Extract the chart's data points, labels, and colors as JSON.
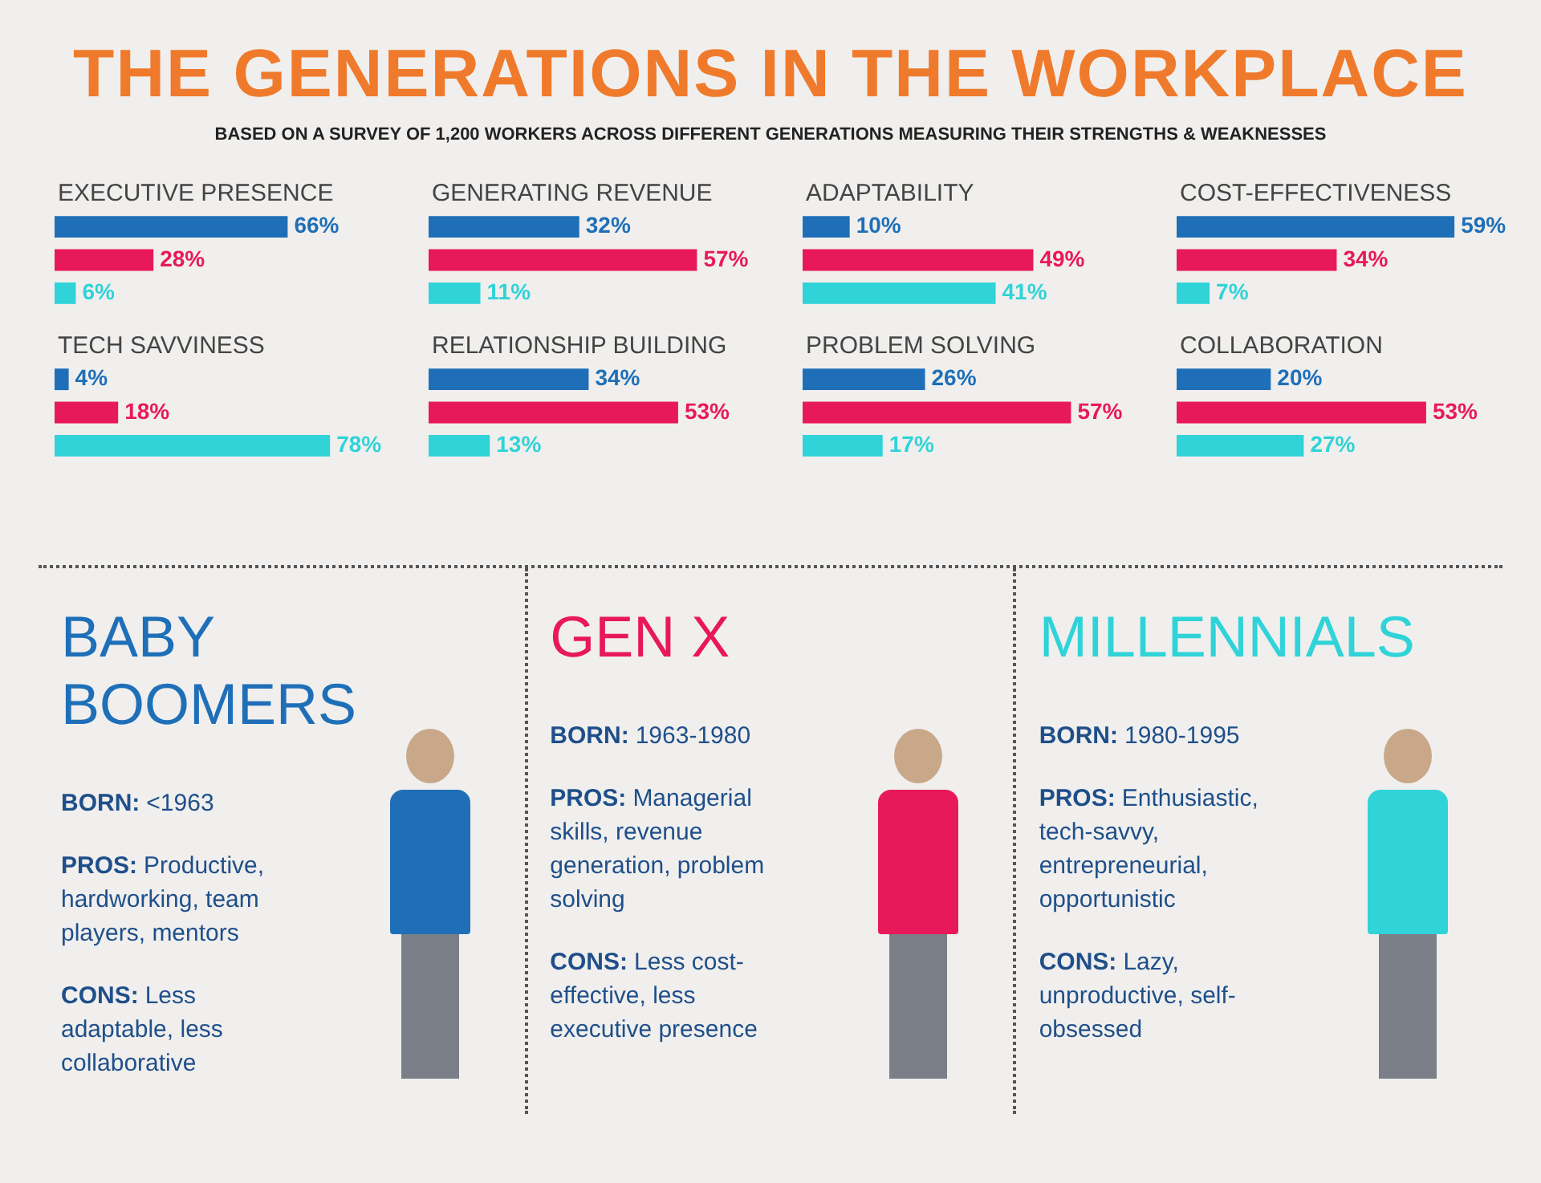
{
  "chart_data": [
    {
      "type": "other",
      "title": "THE GENERATIONS IN THE WORKPLACE",
      "subtitle": "BASED ON A SURVEY OF 1,200 WORKERS ACROSS DIFFERENT GENERATIONS MEASURING THEIR STRENGTHS & WEAKNESSES",
      "color": "#f07a2c"
    },
    {
      "type": "bar",
      "orientation": "horizontal",
      "title": "EXECUTIVE PRESENCE",
      "categories": [
        null,
        null,
        null
      ],
      "values": [
        66,
        28,
        6
      ],
      "colors": [
        "#1f6fb8",
        "#e8195a",
        "#2fd3d8"
      ],
      "value_labels": [
        "66%",
        "28%",
        "6%"
      ]
    },
    {
      "type": "bar",
      "orientation": "horizontal",
      "title": "GENERATING REVENUE",
      "categories": [
        null,
        null,
        null
      ],
      "values": [
        32,
        57,
        11
      ],
      "colors": [
        "#1f6fb8",
        "#e8195a",
        "#2fd3d8"
      ],
      "value_labels": [
        "32%",
        "57%",
        "11%"
      ]
    },
    {
      "type": "bar",
      "orientation": "horizontal",
      "title": "ADAPTABILITY",
      "categories": [
        null,
        null,
        null
      ],
      "values": [
        10,
        49,
        41
      ],
      "colors": [
        "#1f6fb8",
        "#e8195a",
        "#2fd3d8"
      ],
      "value_labels": [
        "10%",
        "49%",
        "41%"
      ]
    },
    {
      "type": "bar",
      "orientation": "horizontal",
      "title": "COST-EFFECTIVENESS",
      "categories": [
        null,
        null,
        null
      ],
      "values": [
        59,
        34,
        7
      ],
      "colors": [
        "#1f6fb8",
        "#e8195a",
        "#2fd3d8"
      ],
      "value_labels": [
        "59%",
        "34%",
        "7%"
      ]
    },
    {
      "type": "bar",
      "orientation": "horizontal",
      "title": "TECH SAVVINESS",
      "categories": [
        null,
        null,
        null
      ],
      "values": [
        4,
        18,
        78
      ],
      "colors": [
        "#1f6fb8",
        "#e8195a",
        "#2fd3d8"
      ],
      "value_labels": [
        "4%",
        "18%",
        "78%"
      ]
    },
    {
      "type": "bar",
      "orientation": "horizontal",
      "title": "RELATIONSHIP BUILDING",
      "categories": [
        null,
        null,
        null
      ],
      "values": [
        34,
        53,
        13
      ],
      "colors": [
        "#1f6fb8",
        "#e8195a",
        "#2fd3d8"
      ],
      "value_labels": [
        "34%",
        "53%",
        "13%"
      ]
    },
    {
      "type": "bar",
      "orientation": "horizontal",
      "title": "PROBLEM SOLVING",
      "categories": [
        null,
        null,
        null
      ],
      "values": [
        26,
        57,
        17
      ],
      "colors": [
        "#1f6fb8",
        "#e8195a",
        "#2fd3d8"
      ],
      "value_labels": [
        "26%",
        "57%",
        "17%"
      ]
    },
    {
      "type": "bar",
      "orientation": "horizontal",
      "title": "COLLABORATION",
      "categories": [
        null,
        null,
        null
      ],
      "values": [
        20,
        53,
        27
      ],
      "colors": [
        "#1f6fb8",
        "#e8195a",
        "#2fd3d8"
      ],
      "value_labels": [
        "20%",
        "53%",
        "27%"
      ]
    },
    {
      "type": "other",
      "title": "BABY BOOMERS",
      "color": "#1f6fb8",
      "annotations": [
        "BORN: <1963",
        "PROS: Productive, hardworking, team players, mentors",
        "CONS: Less adaptable, less collaborative"
      ]
    },
    {
      "type": "other",
      "title": "GEN X",
      "color": "#e8195a",
      "annotations": [
        "BORN: 1963-1980",
        "PROS: Managerial skills, revenue generation, problem solving",
        "CONS: Less cost-effective, less executive presence"
      ]
    },
    {
      "type": "other",
      "title": "MILLENNIALS",
      "color": "#2fd3d8",
      "annotations": [
        "BORN: 1980-1995",
        "PROS: Enthusiastic, tech-savvy, entrepreneurial, opportunistic",
        "CONS: Lazy, unproductive, self-obsessed"
      ]
    }
  ]
}
